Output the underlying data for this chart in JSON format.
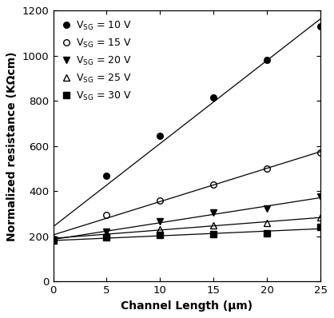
{
  "x": [
    0,
    5,
    10,
    15,
    20,
    25
  ],
  "series": [
    {
      "label": "V$_\\mathrm{SG}$ = 10 V",
      "y": [
        180,
        470,
        645,
        815,
        980,
        1130
      ],
      "marker": "o",
      "fillstyle": "full",
      "color": "black"
    },
    {
      "label": "V$_\\mathrm{SG}$ = 15 V",
      "y": [
        190,
        295,
        360,
        430,
        500,
        570
      ],
      "marker": "o",
      "fillstyle": "none",
      "color": "black"
    },
    {
      "label": "V$_\\mathrm{SG}$ = 20 V",
      "y": [
        185,
        220,
        265,
        305,
        322,
        375
      ],
      "marker": "v",
      "fillstyle": "full",
      "color": "black"
    },
    {
      "label": "V$_\\mathrm{SG}$ = 25 V",
      "y": [
        185,
        215,
        230,
        250,
        260,
        283
      ],
      "marker": "^",
      "fillstyle": "none",
      "color": "black"
    },
    {
      "label": "V$_\\mathrm{SG}$ = 30 V",
      "y": [
        180,
        195,
        205,
        210,
        215,
        240
      ],
      "marker": "s",
      "fillstyle": "full",
      "color": "black"
    }
  ],
  "xlabel": "Channel Length (μm)",
  "ylabel": "Normalized resistance (KΩcm)",
  "xlim": [
    0,
    25
  ],
  "ylim": [
    0,
    1200
  ],
  "yticks": [
    0,
    200,
    400,
    600,
    800,
    1000,
    1200
  ],
  "xticks": [
    0,
    5,
    10,
    15,
    20,
    25
  ],
  "background_color": "#ffffff",
  "markers": [
    "o",
    "o",
    "v",
    "^",
    "s"
  ],
  "fillstyles": [
    "full",
    "none",
    "full",
    "none",
    "full"
  ]
}
